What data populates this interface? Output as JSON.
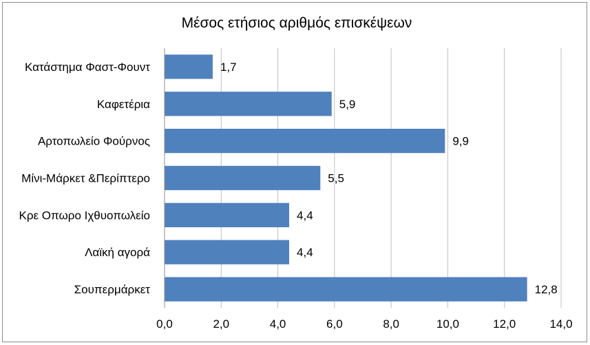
{
  "chart_data": {
    "type": "bar",
    "orientation": "horizontal",
    "title": "Μέσος ετήσιος αριθμός επισκέψεων",
    "categories": [
      "Κατάστημα Φαστ-Φουντ",
      "Καφετέρια",
      "Αρτοπωλείο Φούρνος",
      "Μίνι-Μάρκετ &Περίπτερο",
      "Κρε Οπωρο Ιχθυοπωλείο",
      "Λαϊκή αγορά",
      "Σουπερμάρκετ"
    ],
    "values": [
      1.7,
      5.9,
      9.9,
      5.5,
      4.4,
      4.4,
      12.8
    ],
    "data_labels": [
      "1,7",
      "5,9",
      "9,9",
      "5,5",
      "4,4",
      "4,4",
      "12,8"
    ],
    "xlim": [
      0,
      14
    ],
    "x_ticks": [
      "0,0",
      "2,0",
      "4,0",
      "6,0",
      "8,0",
      "10,0",
      "12,0",
      "14,0"
    ],
    "xlabel": "",
    "ylabel": "",
    "grid": "vertical",
    "legend": "none",
    "bar_color": "#4f81bd",
    "gridline_color": "#bfbfbf"
  }
}
